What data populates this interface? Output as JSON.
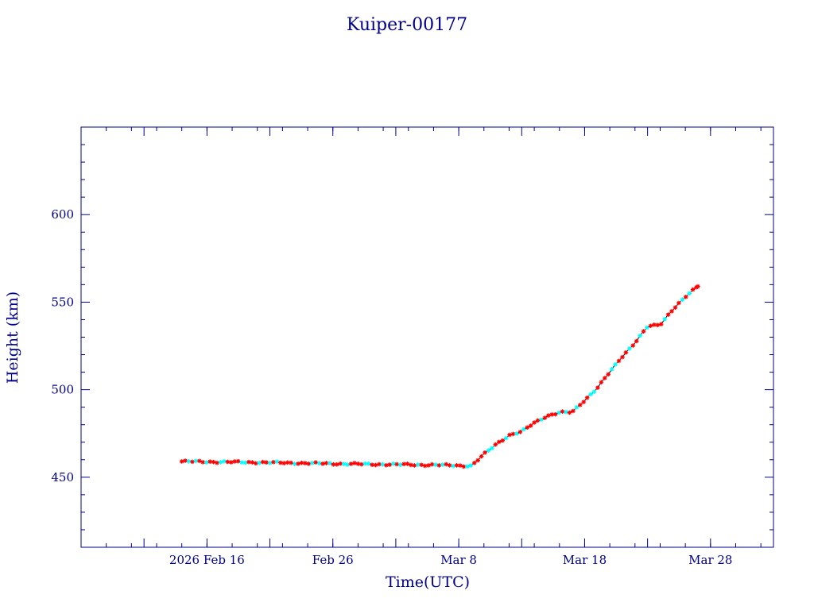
{
  "chart_data": {
    "type": "scatter",
    "title": "Kuiper-00177",
    "xlabel": "Time(UTC)",
    "ylabel": "Height (km)",
    "x_unit": "day",
    "xlim": [
      "2026-02-06",
      "2026-04-02"
    ],
    "ylim": [
      410,
      650
    ],
    "x_ticks": [
      {
        "date": "2026-02-16",
        "label": "2026 Feb 16"
      },
      {
        "date": "2026-02-26",
        "label": "Feb 26"
      },
      {
        "date": "2026-03-08",
        "label": "Mar  8"
      },
      {
        "date": "2026-03-18",
        "label": "Mar 18"
      },
      {
        "date": "2026-03-28",
        "label": "Mar 28"
      }
    ],
    "y_ticks": [
      450,
      500,
      550,
      600
    ],
    "grid": false,
    "colors": {
      "axis": "#00008b",
      "line": "#000000",
      "marker_primary": "#ff0000",
      "marker_secondary": "#00ffff"
    },
    "series": [
      {
        "x": [
          "2026-02-14",
          "2026-02-20",
          "2026-02-28",
          "2026-03-06",
          "2026-03-09",
          "2026-03-10",
          "2026-03-11",
          "2026-03-12",
          "2026-03-13",
          "2026-03-14",
          "2026-03-15",
          "2026-03-16",
          "2026-03-17",
          "2026-03-18",
          "2026-03-19",
          "2026-03-20",
          "2026-03-21",
          "2026-03-22",
          "2026-03-23",
          "2026-03-24",
          "2026-03-25",
          "2026-03-26",
          "2026-03-27"
        ],
        "y": [
          459,
          458.5,
          457.5,
          457,
          456.5,
          463,
          469,
          474,
          476,
          481,
          485,
          487,
          487,
          494,
          501,
          510,
          519,
          527,
          536,
          537,
          546,
          553,
          559
        ]
      }
    ]
  }
}
